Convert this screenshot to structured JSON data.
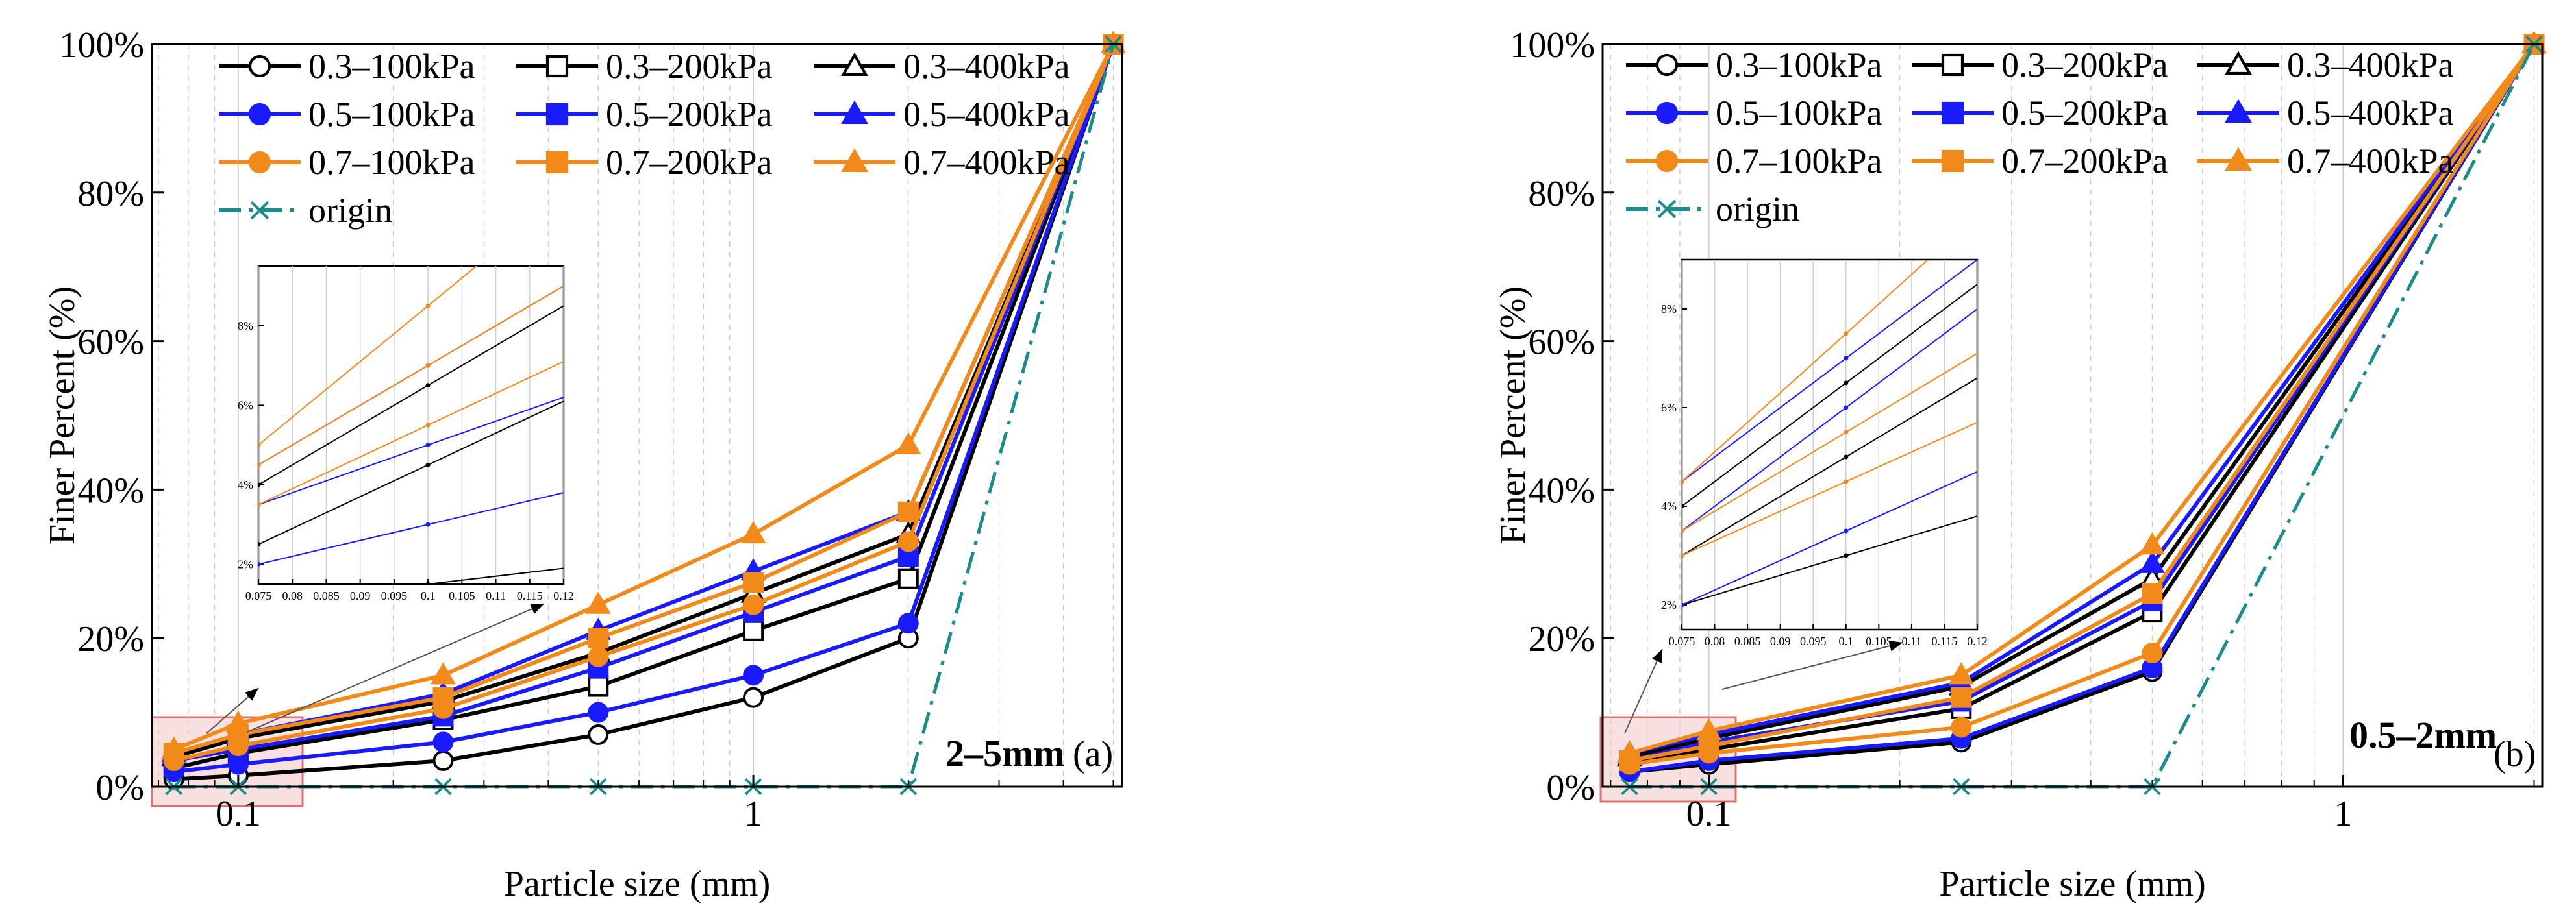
{
  "colors": {
    "black": "#000000",
    "blue": "#1a1aff",
    "orange": "#f28a1a",
    "teal": "#1a8c8c",
    "highlight_fill": "#f3c6c6",
    "highlight_stroke": "#e07070",
    "grid": "#cfcfcf"
  },
  "chart_data": [
    {
      "type": "line",
      "panel_label": "(a)",
      "gradation_label": "2–5mm",
      "xlabel": "Particle size (mm)",
      "ylabel": "Finer Percent (%)",
      "xscale": "log",
      "xlim": [
        0.068,
        5.2
      ],
      "ylim": [
        0,
        100
      ],
      "xticks": [
        {
          "value": 0.1,
          "label": "0.1"
        },
        {
          "value": 1,
          "label": "1"
        }
      ],
      "yticks": [
        {
          "value": 0,
          "label": "0%"
        },
        {
          "value": 20,
          "label": "20%"
        },
        {
          "value": 40,
          "label": "40%"
        },
        {
          "value": 60,
          "label": "60%"
        },
        {
          "value": 80,
          "label": "80%"
        },
        {
          "value": 100,
          "label": "100%"
        }
      ],
      "x": [
        0.075,
        0.1,
        0.25,
        0.5,
        1,
        2,
        5
      ],
      "series": [
        {
          "name": "0.3–100kPa",
          "color": "black",
          "marker": "circle-open",
          "values": [
            1.0,
            1.5,
            3.5,
            7.0,
            12.0,
            20.0,
            100
          ]
        },
        {
          "name": "0.3–200kPa",
          "color": "black",
          "marker": "square-open",
          "values": [
            2.5,
            4.5,
            9.0,
            13.5,
            21.0,
            28.0,
            100
          ]
        },
        {
          "name": "0.3–400kPa",
          "color": "black",
          "marker": "triangle-open",
          "values": [
            4.0,
            6.5,
            11.5,
            18.0,
            26.0,
            34.0,
            100
          ]
        },
        {
          "name": "0.5–100kPa",
          "color": "blue",
          "marker": "circle",
          "values": [
            2.0,
            3.0,
            6.0,
            10.0,
            15.0,
            22.0,
            100
          ]
        },
        {
          "name": "0.5–200kPa",
          "color": "blue",
          "marker": "square",
          "values": [
            3.5,
            5.0,
            9.5,
            16.0,
            23.5,
            31.0,
            100
          ]
        },
        {
          "name": "0.5–400kPa",
          "color": "blue",
          "marker": "triangle",
          "values": [
            4.5,
            7.0,
            12.5,
            21.0,
            29.0,
            37.0,
            100
          ]
        },
        {
          "name": "0.7–100kPa",
          "color": "orange",
          "marker": "circle",
          "values": [
            3.5,
            5.5,
            10.5,
            17.5,
            24.5,
            33.0,
            100
          ]
        },
        {
          "name": "0.7–200kPa",
          "color": "orange",
          "marker": "square",
          "values": [
            4.5,
            7.0,
            12.0,
            20.0,
            27.5,
            37.0,
            100
          ]
        },
        {
          "name": "0.7–400kPa",
          "color": "orange",
          "marker": "triangle",
          "values": [
            5.0,
            8.5,
            15.0,
            24.5,
            34.0,
            46.0,
            100
          ]
        },
        {
          "name": "origin",
          "color": "teal",
          "marker": "x",
          "values": [
            0,
            0,
            0,
            0,
            0,
            0,
            100
          ]
        }
      ],
      "legend_placement": "top-left",
      "inset": {
        "xlim": [
          0.075,
          0.12
        ],
        "ylim": [
          1.5,
          9.5
        ],
        "xticks": [
          {
            "value": 0.075,
            "label": "0.075"
          },
          {
            "value": 0.08,
            "label": "0.08"
          },
          {
            "value": 0.085,
            "label": "0.085"
          },
          {
            "value": 0.09,
            "label": "0.09"
          },
          {
            "value": 0.095,
            "label": "0.095"
          },
          {
            "value": 0.1,
            "label": "0.1"
          },
          {
            "value": 0.105,
            "label": "0.105"
          },
          {
            "value": 0.11,
            "label": "0.11"
          },
          {
            "value": 0.115,
            "label": "0.115"
          },
          {
            "value": 0.12,
            "label": "0.12"
          }
        ],
        "yticks": [
          {
            "value": 2,
            "label": "2%"
          },
          {
            "value": 4,
            "label": "4%"
          },
          {
            "value": 6,
            "label": "6%"
          },
          {
            "value": 8,
            "label": "8%"
          }
        ]
      }
    },
    {
      "type": "line",
      "panel_label": "(b)",
      "gradation_label": "0.5–2mm",
      "xlabel": "Particle size (mm)",
      "ylabel": "Finer Percent (%)",
      "xscale": "log",
      "xlim": [
        0.068,
        2.06
      ],
      "ylim": [
        0,
        100
      ],
      "xticks": [
        {
          "value": 0.1,
          "label": "0.1"
        },
        {
          "value": 1,
          "label": "1"
        }
      ],
      "yticks": [
        {
          "value": 0,
          "label": "0%"
        },
        {
          "value": 20,
          "label": "20%"
        },
        {
          "value": 40,
          "label": "40%"
        },
        {
          "value": 60,
          "label": "60%"
        },
        {
          "value": 80,
          "label": "80%"
        },
        {
          "value": 100,
          "label": "100%"
        }
      ],
      "x": [
        0.075,
        0.1,
        0.25,
        0.5,
        2
      ],
      "series": [
        {
          "name": "0.3–100kPa",
          "color": "black",
          "marker": "circle-open",
          "values": [
            2.0,
            3.0,
            6.0,
            15.5,
            100
          ]
        },
        {
          "name": "0.3–200kPa",
          "color": "black",
          "marker": "square-open",
          "values": [
            3.0,
            5.0,
            10.5,
            23.5,
            100
          ]
        },
        {
          "name": "0.3–400kPa",
          "color": "black",
          "marker": "triangle-open",
          "values": [
            4.0,
            6.5,
            13.5,
            28.0,
            100
          ]
        },
        {
          "name": "0.5–100kPa",
          "color": "blue",
          "marker": "circle",
          "values": [
            2.0,
            3.5,
            6.5,
            16.0,
            100
          ]
        },
        {
          "name": "0.5–200kPa",
          "color": "blue",
          "marker": "square",
          "values": [
            3.5,
            6.0,
            11.5,
            25.0,
            100
          ]
        },
        {
          "name": "0.5–400kPa",
          "color": "blue",
          "marker": "triangle",
          "values": [
            4.5,
            7.0,
            14.0,
            30.0,
            100
          ]
        },
        {
          "name": "0.7–100kPa",
          "color": "orange",
          "marker": "circle",
          "values": [
            3.0,
            4.5,
            8.0,
            18.0,
            100
          ]
        },
        {
          "name": "0.7–200kPa",
          "color": "orange",
          "marker": "square",
          "values": [
            3.5,
            5.5,
            12.0,
            26.0,
            100
          ]
        },
        {
          "name": "0.7–400kPa",
          "color": "orange",
          "marker": "triangle",
          "values": [
            4.5,
            7.5,
            15.0,
            32.5,
            100
          ]
        },
        {
          "name": "origin",
          "color": "teal",
          "marker": "x",
          "values": [
            0,
            0,
            0,
            0,
            100
          ]
        }
      ],
      "legend_placement": "top-left",
      "inset": {
        "xlim": [
          0.075,
          0.12
        ],
        "ylim": [
          1.5,
          9.0
        ],
        "xticks": [
          {
            "value": 0.075,
            "label": "0.075"
          },
          {
            "value": 0.08,
            "label": "0.08"
          },
          {
            "value": 0.085,
            "label": "0.085"
          },
          {
            "value": 0.09,
            "label": "0.09"
          },
          {
            "value": 0.095,
            "label": "0.095"
          },
          {
            "value": 0.1,
            "label": "0.1"
          },
          {
            "value": 0.105,
            "label": "0.105"
          },
          {
            "value": 0.11,
            "label": "0.11"
          },
          {
            "value": 0.115,
            "label": "0.115"
          },
          {
            "value": 0.12,
            "label": "0.12"
          }
        ],
        "yticks": [
          {
            "value": 2,
            "label": "2%"
          },
          {
            "value": 4,
            "label": "4%"
          },
          {
            "value": 6,
            "label": "6%"
          },
          {
            "value": 8,
            "label": "8%"
          }
        ]
      }
    }
  ]
}
